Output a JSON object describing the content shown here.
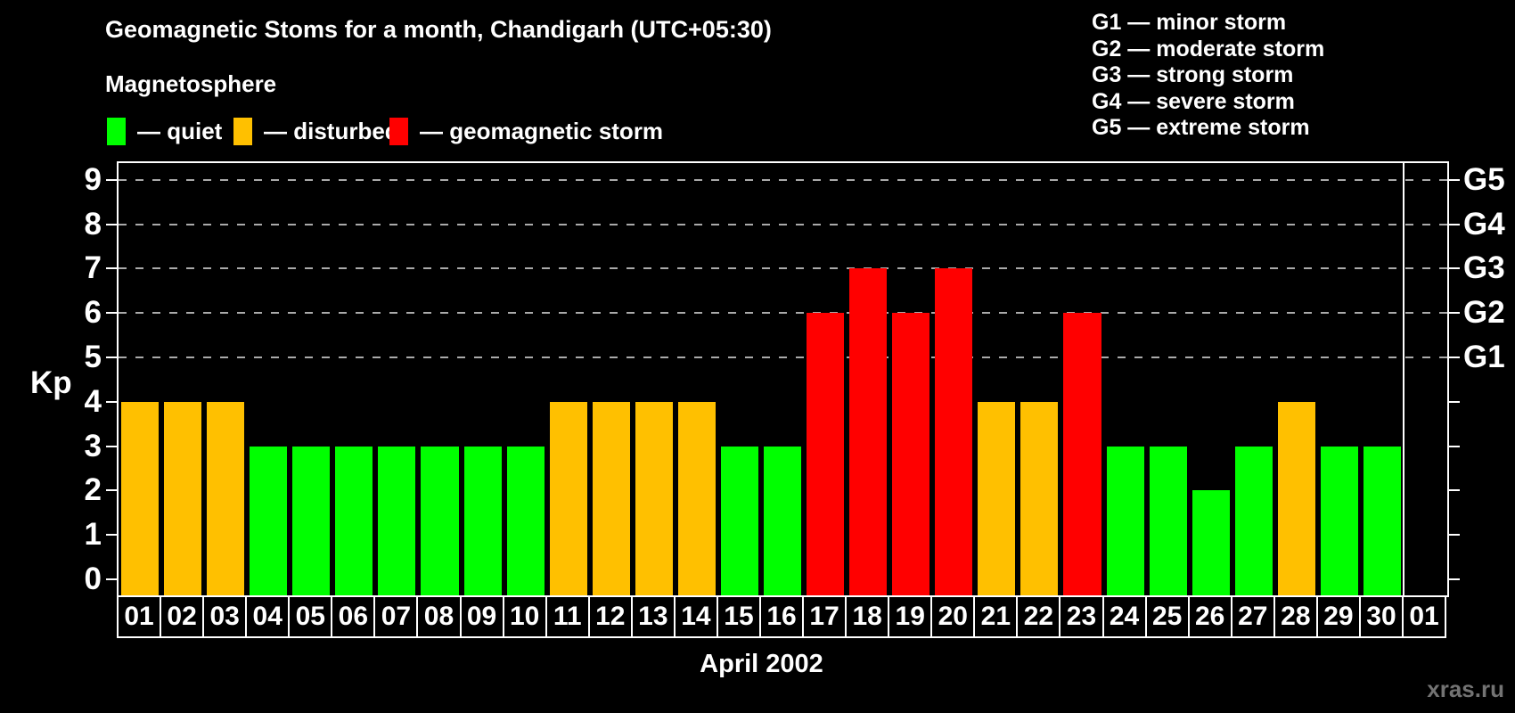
{
  "title": "Geomagnetic Stoms for a month, Chandigarh (UTC+05:30)",
  "subtitle": "Magnetosphere",
  "legend": {
    "items": [
      {
        "name": "quiet",
        "label": "— quiet",
        "color": "#00ff00"
      },
      {
        "name": "disturbed",
        "label": "— disturbed",
        "color": "#ffc000"
      },
      {
        "name": "storm",
        "label": "— geomagnetic storm",
        "color": "#ff0000"
      }
    ]
  },
  "g_scale_legend": {
    "lines": [
      "G1 — minor storm",
      "G2 — moderate storm",
      "G3 — strong storm",
      "G4 — severe storm",
      "G5 — extreme storm"
    ]
  },
  "watermark": "xras.ru",
  "chart_data": {
    "type": "bar",
    "title": "Geomagnetic Stoms for a month, Chandigarh (UTC+05:30)",
    "xlabel": "April 2002",
    "ylabel": "Kp",
    "ylim": [
      0,
      9
    ],
    "grid": "dashed horizontal at Kp 5-9",
    "legend_position": "top",
    "status_colors": {
      "quiet": "#00ff00",
      "disturbed": "#ffc000",
      "storm": "#ff0000",
      "none": "transparent"
    },
    "kp_axis_ticks": [
      "0",
      "1",
      "2",
      "3",
      "4",
      "5",
      "6",
      "7",
      "8",
      "9"
    ],
    "grid_levels": [
      5,
      6,
      7,
      8,
      9
    ],
    "right_axis_labels": [
      {
        "kp": 5,
        "label": "G1"
      },
      {
        "kp": 6,
        "label": "G2"
      },
      {
        "kp": 7,
        "label": "G3"
      },
      {
        "kp": 8,
        "label": "G4"
      },
      {
        "kp": 9,
        "label": "G5"
      }
    ],
    "categories": [
      "01",
      "02",
      "03",
      "04",
      "05",
      "06",
      "07",
      "08",
      "09",
      "10",
      "11",
      "12",
      "13",
      "14",
      "15",
      "16",
      "17",
      "18",
      "19",
      "20",
      "21",
      "22",
      "23",
      "24",
      "25",
      "26",
      "27",
      "28",
      "29",
      "30",
      "01"
    ],
    "days": [
      {
        "label": "01",
        "kp": 4,
        "status": "disturbed"
      },
      {
        "label": "02",
        "kp": 4,
        "status": "disturbed"
      },
      {
        "label": "03",
        "kp": 4,
        "status": "disturbed"
      },
      {
        "label": "04",
        "kp": 3,
        "status": "quiet"
      },
      {
        "label": "05",
        "kp": 3,
        "status": "quiet"
      },
      {
        "label": "06",
        "kp": 3,
        "status": "quiet"
      },
      {
        "label": "07",
        "kp": 3,
        "status": "quiet"
      },
      {
        "label": "08",
        "kp": 3,
        "status": "quiet"
      },
      {
        "label": "09",
        "kp": 3,
        "status": "quiet"
      },
      {
        "label": "10",
        "kp": 3,
        "status": "quiet"
      },
      {
        "label": "11",
        "kp": 4,
        "status": "disturbed"
      },
      {
        "label": "12",
        "kp": 4,
        "status": "disturbed"
      },
      {
        "label": "13",
        "kp": 4,
        "status": "disturbed"
      },
      {
        "label": "14",
        "kp": 4,
        "status": "disturbed"
      },
      {
        "label": "15",
        "kp": 3,
        "status": "quiet"
      },
      {
        "label": "16",
        "kp": 3,
        "status": "quiet"
      },
      {
        "label": "17",
        "kp": 6,
        "status": "storm"
      },
      {
        "label": "18",
        "kp": 7,
        "status": "storm"
      },
      {
        "label": "19",
        "kp": 6,
        "status": "storm"
      },
      {
        "label": "20",
        "kp": 7,
        "status": "storm"
      },
      {
        "label": "21",
        "kp": 4,
        "status": "disturbed"
      },
      {
        "label": "22",
        "kp": 4,
        "status": "disturbed"
      },
      {
        "label": "23",
        "kp": 6,
        "status": "storm"
      },
      {
        "label": "24",
        "kp": 3,
        "status": "quiet"
      },
      {
        "label": "25",
        "kp": 3,
        "status": "quiet"
      },
      {
        "label": "26",
        "kp": 2,
        "status": "quiet"
      },
      {
        "label": "27",
        "kp": 3,
        "status": "quiet"
      },
      {
        "label": "28",
        "kp": 4,
        "status": "disturbed"
      },
      {
        "label": "29",
        "kp": 3,
        "status": "quiet"
      },
      {
        "label": "30",
        "kp": 3,
        "status": "quiet"
      },
      {
        "label": "01",
        "kp": null,
        "status": "none"
      }
    ]
  }
}
